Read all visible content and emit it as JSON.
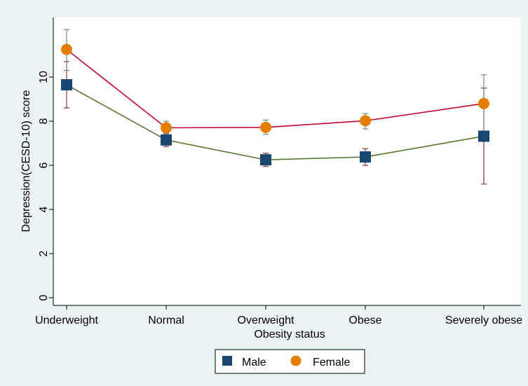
{
  "chart_data": {
    "type": "line",
    "title": "",
    "xlabel": "Obesity status",
    "ylabel": "Depression(CESD-10) score",
    "categories": [
      "Underweight",
      "Normal",
      "Overweight",
      "Obese",
      "Severely obese"
    ],
    "ylim": [
      0,
      12
    ],
    "yticks": [
      0,
      2,
      4,
      6,
      8,
      10
    ],
    "grid": false,
    "legend_position": "bottom",
    "series": [
      {
        "name": "Male",
        "marker": "square",
        "marker_color": "#1a476f",
        "line_color": "#55752f",
        "errorbar_color": "#90353b",
        "values": [
          9.65,
          7.15,
          6.25,
          6.38,
          7.32
        ],
        "lower": [
          8.6,
          6.85,
          5.95,
          6.0,
          5.15
        ],
        "upper": [
          10.7,
          7.45,
          6.55,
          6.75,
          9.5
        ]
      },
      {
        "name": "Female",
        "marker": "circle",
        "marker_color": "#e37e00",
        "line_color": "#c10534",
        "errorbar_color": "#6e8e84",
        "values": [
          11.25,
          7.7,
          7.72,
          8.02,
          8.8
        ],
        "lower": [
          10.3,
          7.4,
          7.4,
          7.65,
          7.45
        ],
        "upper": [
          12.15,
          8.0,
          8.05,
          8.35,
          10.1
        ]
      }
    ]
  }
}
